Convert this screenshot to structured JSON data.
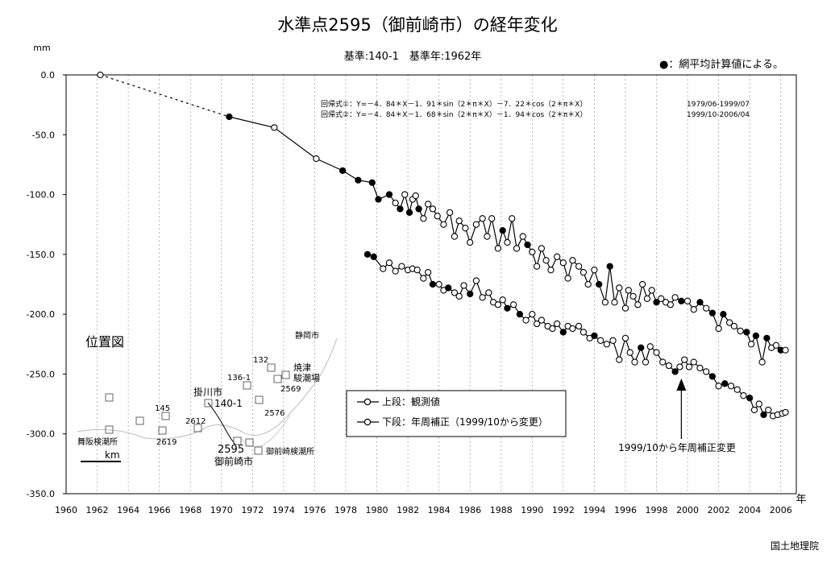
{
  "chart_data": {
    "type": "line",
    "title": "水準点2595（御前崎市）の経年変化",
    "subtitle": "基準:140-1　基準年:1962年",
    "ylabel": "mm",
    "xlabel": "年",
    "ylim": [
      -350,
      0
    ],
    "xlim": [
      1960,
      2007
    ],
    "yticks": [
      "0.0",
      "-50.0",
      "-100.0",
      "-150.0",
      "-200.0",
      "-250.0",
      "-300.0",
      "-350.0"
    ],
    "xticks": [
      "1960",
      "1962",
      "1964",
      "1966",
      "1968",
      "1970",
      "1972",
      "1974",
      "1976",
      "1978",
      "1980",
      "1982",
      "1984",
      "1986",
      "1988",
      "1990",
      "1992",
      "1994",
      "1996",
      "1998",
      "2000",
      "2002",
      "2004",
      "2006"
    ],
    "grid": "vertical-dashed",
    "legend_note": "●：網平均計算値による。",
    "regression_1": "回帰式①：Y=－4．84＊X－1．91＊sin（2＊π＊X）－7．22＊cos（2＊π＊X）",
    "regression_1_period": "1979/06-1999/07",
    "regression_2": "回帰式②：Y=－4．84＊X－1．68＊sin（2＊π＊X）－1．94＊cos（2＊π＊X）",
    "regression_2_period": "1999/10-2006/04",
    "legend": {
      "upper": "上段：観測値",
      "lower": "下段：年周補正（1999/10から変更）"
    },
    "annotation": "1999/10から年周補正変更",
    "annotation_x": 1999.6,
    "series": [
      {
        "name": "上段：観測値",
        "x": [
          1962.2,
          1970.5,
          1973.4,
          1976.1,
          1977.8,
          1978.8,
          1979.7,
          1980.1,
          1980.8,
          1981.2,
          1981.5,
          1981.8,
          1982.1,
          1982.3,
          1982.5,
          1982.7,
          1983.0,
          1983.3,
          1983.6,
          1983.9,
          1984.3,
          1984.7,
          1985.0,
          1985.3,
          1985.7,
          1986.0,
          1986.4,
          1986.8,
          1987.1,
          1987.4,
          1987.8,
          1988.1,
          1988.4,
          1988.7,
          1989.0,
          1989.4,
          1989.7,
          1990.0,
          1990.3,
          1990.6,
          1990.9,
          1991.2,
          1991.6,
          1992.0,
          1992.3,
          1992.6,
          1993.0,
          1993.3,
          1993.6,
          1994.0,
          1994.3,
          1994.7,
          1995.0,
          1995.3,
          1995.6,
          1996.0,
          1996.2,
          1996.5,
          1996.8,
          1997.1,
          1997.4,
          1997.7,
          1998.0,
          1998.3,
          1998.6,
          1998.9,
          1999.2,
          1999.6,
          2000.0,
          2000.4,
          2000.8,
          2001.2,
          2001.6,
          2002.0,
          2002.3,
          2002.7,
          2003.0,
          2003.4,
          2003.8,
          2004.1,
          2004.4,
          2004.8,
          2005.1,
          2005.4,
          2005.7,
          2006.0,
          2006.3
        ],
        "y": [
          0,
          -35,
          -44,
          -70,
          -80,
          -88,
          -90,
          -104,
          -100,
          -107,
          -112,
          -100,
          -115,
          -104,
          -101,
          -112,
          -120,
          -108,
          -112,
          -118,
          -125,
          -115,
          -135,
          -122,
          -128,
          -140,
          -125,
          -120,
          -135,
          -120,
          -145,
          -130,
          -140,
          -120,
          -145,
          -135,
          -142,
          -148,
          -160,
          -145,
          -155,
          -163,
          -152,
          -157,
          -170,
          -155,
          -160,
          -165,
          -175,
          -163,
          -175,
          -190,
          -160,
          -190,
          -178,
          -195,
          -180,
          -185,
          -192,
          -175,
          -187,
          -180,
          -190,
          -187,
          -190,
          -192,
          -186,
          -189,
          -189,
          -196,
          -190,
          -195,
          -199,
          -212,
          -200,
          -207,
          -210,
          -214,
          -215,
          -225,
          -218,
          -240,
          -220,
          -228,
          -226,
          -230,
          -230
        ],
        "filled": [
          false,
          true,
          false,
          false,
          true,
          true,
          true,
          true,
          true,
          false,
          true,
          false,
          true,
          false,
          false,
          true,
          false,
          false,
          false,
          false,
          false,
          false,
          false,
          false,
          false,
          false,
          false,
          false,
          false,
          false,
          false,
          true,
          false,
          false,
          false,
          false,
          true,
          false,
          false,
          false,
          false,
          false,
          false,
          false,
          false,
          false,
          false,
          false,
          false,
          false,
          true,
          false,
          true,
          false,
          false,
          false,
          false,
          false,
          false,
          false,
          false,
          false,
          true,
          false,
          false,
          false,
          false,
          true,
          false,
          false,
          true,
          false,
          true,
          false,
          true,
          false,
          false,
          false,
          true,
          false,
          true,
          false,
          true,
          false,
          false,
          true,
          false
        ]
      },
      {
        "name": "下段：年周補正（1999/10から変更）",
        "x": [
          1979.4,
          1979.8,
          1980.4,
          1980.8,
          1981.2,
          1981.6,
          1982.0,
          1982.3,
          1982.6,
          1983.0,
          1983.3,
          1983.6,
          1984.0,
          1984.3,
          1984.6,
          1985.0,
          1985.3,
          1985.6,
          1986.0,
          1986.4,
          1986.8,
          1987.2,
          1987.5,
          1987.8,
          1988.1,
          1988.4,
          1988.8,
          1989.2,
          1989.6,
          1990.0,
          1990.3,
          1990.6,
          1991.0,
          1991.3,
          1991.6,
          1992.0,
          1992.3,
          1992.6,
          1993.0,
          1993.3,
          1993.7,
          1994.0,
          1994.4,
          1994.8,
          1995.2,
          1995.6,
          1996.0,
          1996.3,
          1996.6,
          1997.0,
          1997.3,
          1997.6,
          1998.0,
          1998.4,
          1998.8,
          1999.2,
          1999.5,
          1999.8,
          2000.1,
          2000.4,
          2000.8,
          2001.2,
          2001.6,
          2002.0,
          2002.4,
          2002.8,
          2003.2,
          2003.6,
          2004.0,
          2004.3,
          2004.6,
          2004.9,
          2005.2,
          2005.5,
          2005.8,
          2006.1,
          2006.3
        ],
        "y": [
          -150,
          -152,
          -162,
          -157,
          -164,
          -160,
          -163,
          -162,
          -163,
          -170,
          -165,
          -175,
          -175,
          -180,
          -178,
          -182,
          -185,
          -176,
          -183,
          -172,
          -186,
          -182,
          -190,
          -192,
          -188,
          -195,
          -192,
          -200,
          -205,
          -200,
          -208,
          -205,
          -210,
          -212,
          -208,
          -215,
          -210,
          -212,
          -210,
          -215,
          -220,
          -218,
          -222,
          -225,
          -222,
          -238,
          -220,
          -232,
          -240,
          -228,
          -240,
          -227,
          -232,
          -240,
          -243,
          -248,
          -244,
          -238,
          -244,
          -240,
          -245,
          -248,
          -252,
          -260,
          -258,
          -260,
          -263,
          -268,
          -270,
          -280,
          -275,
          -284,
          -280,
          -285,
          -284,
          -283,
          -282
        ],
        "filled": [
          true,
          true,
          false,
          false,
          false,
          false,
          false,
          false,
          false,
          false,
          false,
          true,
          false,
          false,
          true,
          false,
          false,
          false,
          true,
          false,
          false,
          false,
          false,
          false,
          false,
          true,
          false,
          true,
          false,
          false,
          false,
          false,
          false,
          false,
          false,
          true,
          false,
          false,
          false,
          false,
          false,
          true,
          false,
          false,
          false,
          false,
          false,
          false,
          false,
          true,
          false,
          false,
          false,
          false,
          false,
          true,
          false,
          false,
          false,
          false,
          false,
          false,
          true,
          false,
          true,
          false,
          false,
          false,
          true,
          false,
          false,
          true,
          false,
          false,
          false,
          false,
          false
        ]
      }
    ],
    "inset_map": {
      "title": "位置図",
      "scale_label": "km",
      "labels": [
        "静岡市",
        "132",
        "焼津",
        "駿潮場",
        "136-1",
        "2569",
        "掛川市",
        "140-1",
        "145",
        "2612",
        "2576",
        "舞阪検潮所",
        "2619",
        "2595",
        "御前崎市",
        "御前崎検潮所"
      ]
    }
  },
  "footer": "国土地理院"
}
